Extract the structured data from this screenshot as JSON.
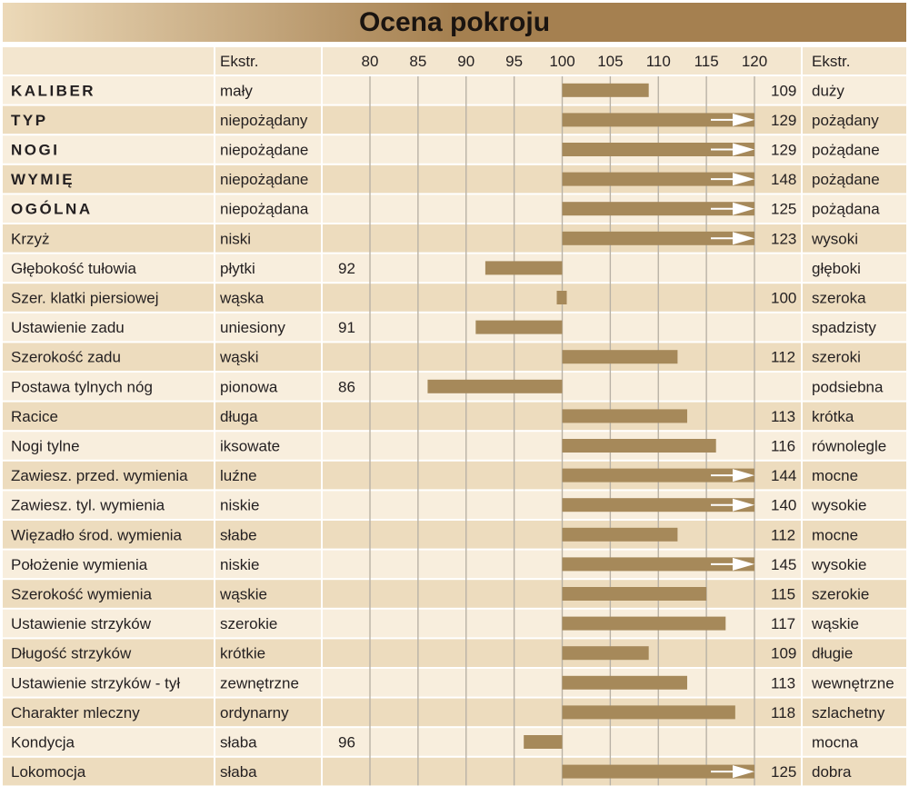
{
  "chart_data": {
    "type": "bar",
    "title": "Ocena pokroju",
    "header": {
      "left_extreme": "Ekstr.",
      "right_extreme": "Ekstr."
    },
    "x_ticks": [
      80,
      85,
      90,
      95,
      100,
      105,
      110,
      115,
      120
    ],
    "xlim": [
      80,
      120
    ],
    "baseline": 100,
    "grid": true,
    "rows": [
      {
        "trait": "KALIBER",
        "bold": true,
        "low": "mały",
        "high": "duży",
        "value": 109
      },
      {
        "trait": "TYP",
        "bold": true,
        "low": "niepożądany",
        "high": "pożądany",
        "value": 129
      },
      {
        "trait": "NOGI",
        "bold": true,
        "low": "niepożądane",
        "high": "pożądane",
        "value": 129
      },
      {
        "trait": "WYMIĘ",
        "bold": true,
        "low": "niepożądane",
        "high": "pożądane",
        "value": 148
      },
      {
        "trait": "OGÓLNA",
        "bold": true,
        "low": "niepożądana",
        "high": "pożądana",
        "value": 125
      },
      {
        "trait": "Krzyż",
        "bold": false,
        "low": "niski",
        "high": "wysoki",
        "value": 123
      },
      {
        "trait": "Głębokość tułowia",
        "bold": false,
        "low": "płytki",
        "high": "głęboki",
        "value": 92
      },
      {
        "trait": "Szer. klatki piersiowej",
        "bold": false,
        "low": "wąska",
        "high": "szeroka",
        "value": 100
      },
      {
        "trait": "Ustawienie zadu",
        "bold": false,
        "low": "uniesiony",
        "high": "spadzisty",
        "value": 91
      },
      {
        "trait": "Szerokość zadu",
        "bold": false,
        "low": "wąski",
        "high": "szeroki",
        "value": 112
      },
      {
        "trait": "Postawa tylnych nóg",
        "bold": false,
        "low": "pionowa",
        "high": "podsiebna",
        "value": 86
      },
      {
        "trait": "Racice",
        "bold": false,
        "low": "długa",
        "high": "krótka",
        "value": 113
      },
      {
        "trait": "Nogi tylne",
        "bold": false,
        "low": "iksowate",
        "high": "równolegle",
        "value": 116
      },
      {
        "trait": "Zawiesz. przed. wymienia",
        "bold": false,
        "low": "luźne",
        "high": "mocne",
        "value": 144
      },
      {
        "trait": "Zawiesz. tyl. wymienia",
        "bold": false,
        "low": "niskie",
        "high": "wysokie",
        "value": 140
      },
      {
        "trait": "Więzadło środ. wymienia",
        "bold": false,
        "low": "słabe",
        "high": "mocne",
        "value": 112
      },
      {
        "trait": "Położenie wymienia",
        "bold": false,
        "low": "niskie",
        "high": "wysokie",
        "value": 145
      },
      {
        "trait": "Szerokość wymienia",
        "bold": false,
        "low": "wąskie",
        "high": "szerokie",
        "value": 115
      },
      {
        "trait": "Ustawienie strzyków",
        "bold": false,
        "low": "szerokie",
        "high": "wąskie",
        "value": 117
      },
      {
        "trait": "Długość strzyków",
        "bold": false,
        "low": "krótkie",
        "high": "długie",
        "value": 109
      },
      {
        "trait": "Ustawienie strzyków - tył",
        "bold": false,
        "low": "zewnętrzne",
        "high": "wewnętrzne",
        "value": 113
      },
      {
        "trait": "Charakter mleczny",
        "bold": false,
        "low": "ordynarny",
        "high": "szlachetny",
        "value": 118
      },
      {
        "trait": "Kondycja",
        "bold": false,
        "low": "słaba",
        "high": "mocna",
        "value": 96
      },
      {
        "trait": "Lokomocja",
        "bold": false,
        "low": "słaba",
        "high": "dobra",
        "value": 125
      }
    ]
  },
  "colors": {
    "title_bar_light": "#ecd9b8",
    "title_bar_dark": "#a58050",
    "header_bg": "#f3e6cf",
    "row_light": "#f8eedd",
    "row_dark": "#eddcbe",
    "bar": "#a6895a",
    "arrow": "#ffffff",
    "grid": "#b9b2a6"
  }
}
